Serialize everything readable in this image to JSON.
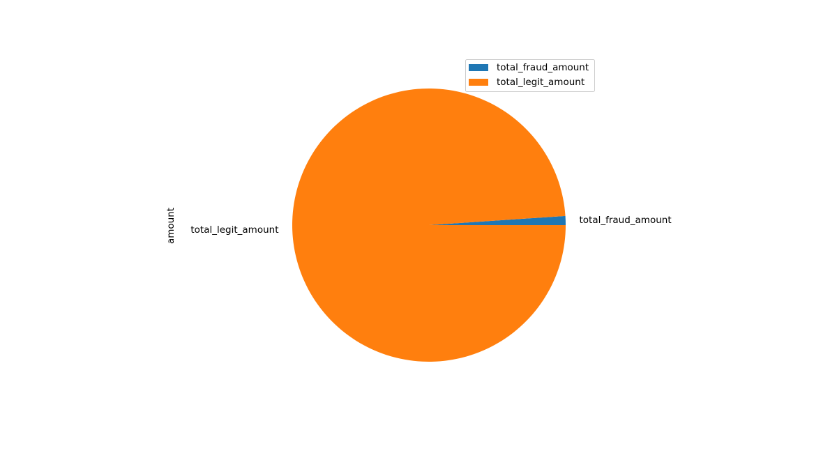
{
  "chart_data": {
    "type": "pie",
    "ylabel": "amount",
    "categories": [
      "total_fraud_amount",
      "total_legit_amount"
    ],
    "values": [
      1.07,
      98.93
    ],
    "colors": [
      "#1f77b4",
      "#ff7f0e"
    ],
    "start_angle_deg": 0,
    "direction": "counterclockwise",
    "legend": {
      "position": "upper-right",
      "entries": [
        "total_fraud_amount",
        "total_legit_amount"
      ]
    }
  }
}
